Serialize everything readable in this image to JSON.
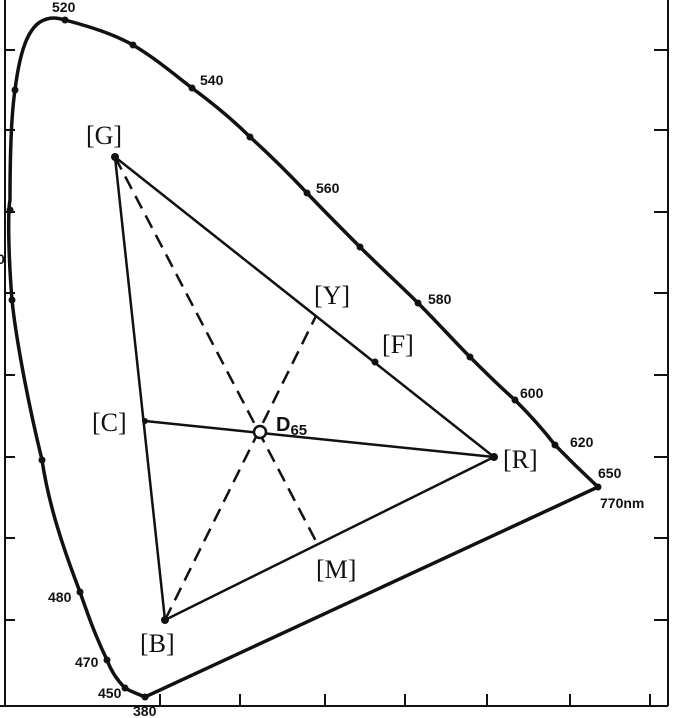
{
  "wavelength_labels": {
    "w520": "520",
    "w540": "540",
    "w560": "560",
    "w580": "580",
    "w600": "600",
    "w620": "620",
    "w650": "650",
    "w770": "770nm",
    "w480": "480",
    "w470": "470",
    "w450": "450",
    "w380": "380",
    "w500": "0"
  },
  "points": {
    "G": "[G]",
    "Y": "[Y]",
    "F": "[F]",
    "C": "[C]",
    "R": "[R]",
    "M": "[M]",
    "B": "[B]",
    "white": {
      "main": "D",
      "sub": "65"
    }
  }
}
